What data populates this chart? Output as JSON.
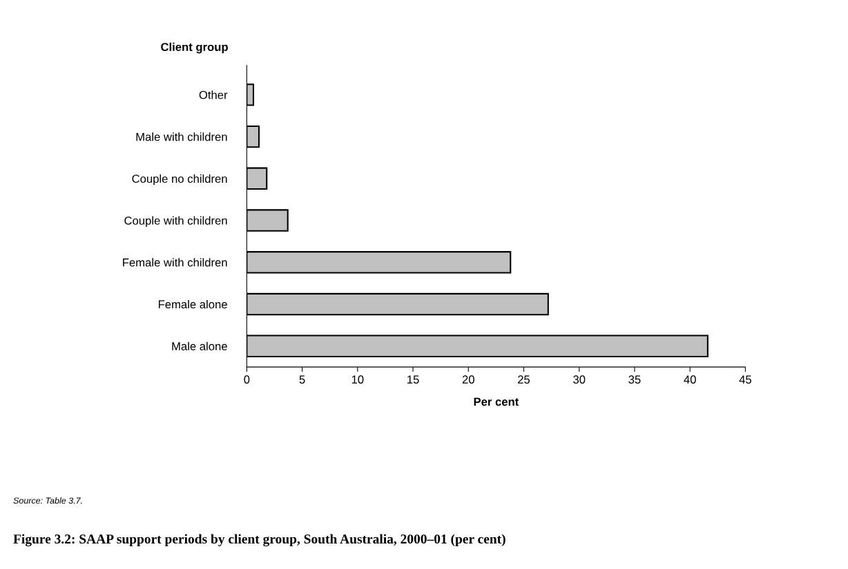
{
  "chart_data": {
    "type": "bar",
    "orientation": "horizontal",
    "title": "Figure 3.2: SAAP support periods by client group, South Australia, 2000–01 (per cent)",
    "xlabel": "Per cent",
    "ylabel": "Client group",
    "categories": [
      "Other",
      "Male with children",
      "Couple no children",
      "Couple with children",
      "Female with children",
      "Female alone",
      "Male alone"
    ],
    "values": [
      0.6,
      1.1,
      1.8,
      3.7,
      23.8,
      27.2,
      41.6
    ],
    "color": "#c0c0c0",
    "xlim": [
      0,
      45
    ],
    "xticks": [
      0,
      5,
      10,
      15,
      20,
      25,
      30,
      35,
      40,
      45
    ],
    "grid": false,
    "annotations": [
      "Source: Table 3.7."
    ]
  }
}
